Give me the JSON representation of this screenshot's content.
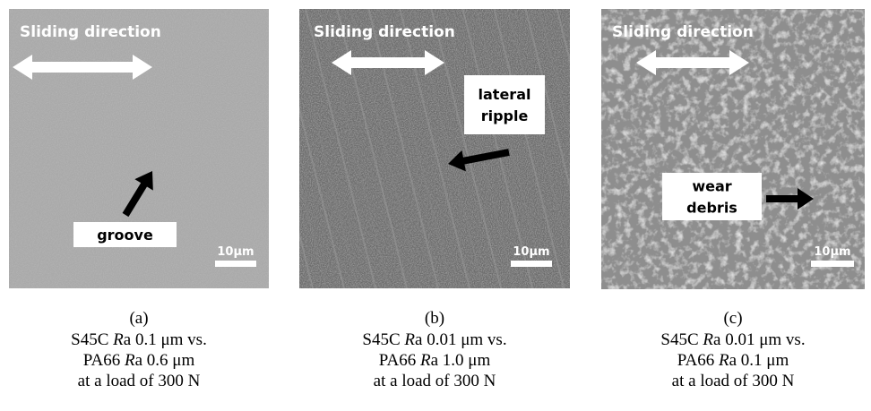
{
  "panels": [
    {
      "label": "(a)",
      "overlay_title": "Sliding direction",
      "annotation": [
        "groove"
      ],
      "scale_bar": "10μm",
      "caption": [
        [
          "S45C ",
          "R",
          "a 0.1 μm vs."
        ],
        [
          "PA66 ",
          "R",
          "a 0.6 μm"
        ],
        [
          "at a load of 300 N"
        ]
      ]
    },
    {
      "label": "(b)",
      "overlay_title": "Sliding direction",
      "annotation": [
        "lateral",
        "ripple"
      ],
      "scale_bar": "10μm",
      "caption": [
        [
          "S45C ",
          "R",
          "a 0.01 μm vs."
        ],
        [
          "PA66 ",
          "R",
          "a 1.0 μm"
        ],
        [
          "at a load of 300 N"
        ]
      ]
    },
    {
      "label": "(c)",
      "overlay_title": "Sliding direction",
      "annotation": [
        "wear",
        "debris"
      ],
      "scale_bar": "10μm",
      "caption": [
        [
          "S45C ",
          "R",
          "a 0.01 μm vs."
        ],
        [
          "PA66 ",
          "R",
          "a 0.1 μm"
        ],
        [
          "at a load of 300 N"
        ]
      ]
    }
  ]
}
